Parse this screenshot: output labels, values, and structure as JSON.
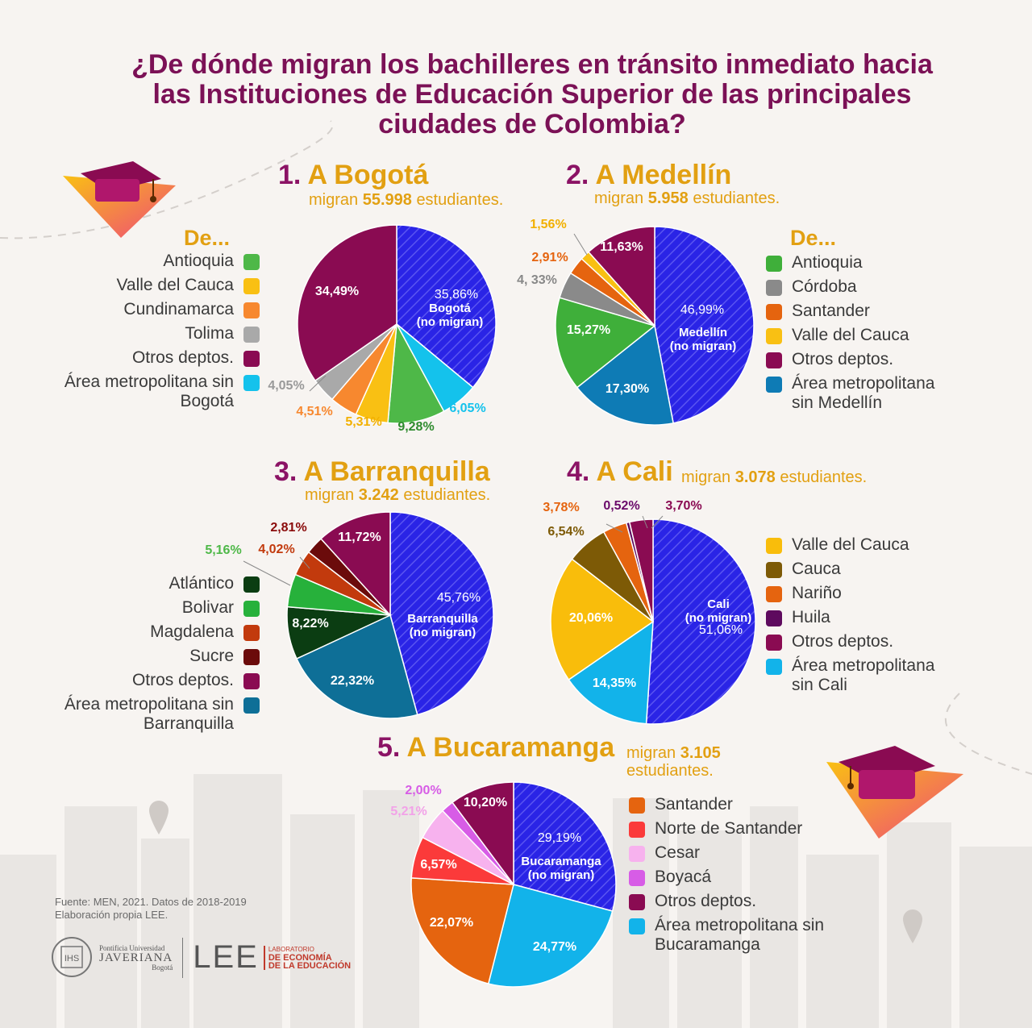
{
  "title": "¿De dónde migran los bachilleres en tránsito inmediato hacia las Instituciones de Educación Superior de las principales ciudades de Colombia?",
  "de_label": "De...",
  "source": {
    "line1": "Fuente: MEN, 2021. Datos de 2018-2019",
    "line2": "Elaboración propia LEE."
  },
  "logos": {
    "puj_small": "Pontificia Universidad",
    "puj_big": "JAVERIANA",
    "puj_city": "Bogotá",
    "lee": "LEE",
    "lee_small": "LABORATORIO",
    "lee_line1": "DE ECONOMÍA",
    "lee_line2": "DE LA EDUCACIÓN"
  },
  "colors": {
    "title": "#7b1156",
    "accent": "#e2a012",
    "background": "#f7f4f1",
    "no_migran": "#2a24e6",
    "otros": "#8a0b52"
  },
  "icons": [
    "graduation-cap-icon",
    "map-pin-icon"
  ],
  "chart_data": [
    {
      "type": "pie",
      "id": "bogota",
      "number": "1.",
      "city": "A Bogotá",
      "subtitle_pre": "migran",
      "subtitle_num": "55.998",
      "subtitle_post": "estudiantes.",
      "slices": [
        {
          "label": "Bogotá (no migran)",
          "value": 35.86,
          "text": "35,86%",
          "color": "#2a24e6",
          "hatched": true
        },
        {
          "label": "Área metropolitana sin Bogotá",
          "value": 6.05,
          "text": "6,05%",
          "color": "#14c2ec"
        },
        {
          "label": "Antioquia",
          "value": 9.28,
          "text": "9,28%",
          "color": "#4eb848"
        },
        {
          "label": "Valle del Cauca",
          "value": 5.31,
          "text": "5,31%",
          "color": "#f9c013"
        },
        {
          "label": "Cundinamarca",
          "value": 4.51,
          "text": "4,51%",
          "color": "#f7882f"
        },
        {
          "label": "Tolima",
          "value": 4.05,
          "text": "4,05%",
          "color": "#a9a9a9"
        },
        {
          "label": "Otros deptos.",
          "value": 34.49,
          "text": "34,49%",
          "color": "#8a0b52"
        }
      ],
      "legend": [
        "Antioquia",
        "Valle del Cauca",
        "Cundinamarca",
        "Tolima",
        "Otros deptos.",
        "Área metropolitana sin Bogotá"
      ],
      "center_label": [
        "Bogotá",
        "(no migran)"
      ]
    },
    {
      "type": "pie",
      "id": "medellin",
      "number": "2.",
      "city": "A Medellín",
      "subtitle_pre": "migran",
      "subtitle_num": "5.958",
      "subtitle_post": "estudiantes.",
      "slices": [
        {
          "label": "Medellín (no migran)",
          "value": 46.99,
          "text": "46,99%",
          "color": "#2a24e6",
          "hatched": true
        },
        {
          "label": "Área metropolitana sin Medellín",
          "value": 17.3,
          "text": "17,30%",
          "color": "#0e7bb5"
        },
        {
          "label": "Antioquia",
          "value": 15.27,
          "text": "15,27%",
          "color": "#3faf3a"
        },
        {
          "label": "Córdoba",
          "value": 4.33,
          "text": "4, 33%",
          "color": "#8a8a8a"
        },
        {
          "label": "Santander",
          "value": 2.91,
          "text": "2,91%",
          "color": "#e5640f"
        },
        {
          "label": "Valle del Cauca",
          "value": 1.56,
          "text": "1,56%",
          "color": "#f9c013"
        },
        {
          "label": "Otros deptos.",
          "value": 11.63,
          "text": "11,63%",
          "color": "#8a0b52"
        }
      ],
      "legend": [
        "Antioquia",
        "Córdoba",
        "Santander",
        "Valle del Cauca",
        "Otros deptos.",
        "Área metropolitana sin Medellín"
      ],
      "center_label": [
        "Medellín",
        "(no migran)"
      ]
    },
    {
      "type": "pie",
      "id": "barranquilla",
      "number": "3.",
      "city": "A Barranquilla",
      "subtitle_pre": "migran",
      "subtitle_num": "3.242",
      "subtitle_post": "estudiantes.",
      "slices": [
        {
          "label": "Barranquilla (no migran)",
          "value": 45.76,
          "text": "45,76%",
          "color": "#2a24e6",
          "hatched": true
        },
        {
          "label": "Área metropolitana sin Barranquilla",
          "value": 22.32,
          "text": "22,32%",
          "color": "#0e6f97"
        },
        {
          "label": "Atlántico",
          "value": 8.22,
          "text": "8,22%",
          "color": "#0b3d12"
        },
        {
          "label": "Bolivar",
          "value": 5.16,
          "text": "5,16%",
          "color": "#27b13b"
        },
        {
          "label": "Magdalena",
          "value": 4.02,
          "text": "4,02%",
          "color": "#c23a0d"
        },
        {
          "label": "Sucre",
          "value": 2.81,
          "text": "2,81%",
          "color": "#6b0b0b"
        },
        {
          "label": "Otros deptos.",
          "value": 11.72,
          "text": "11,72%",
          "color": "#8a0b52"
        }
      ],
      "legend": [
        "Atlántico",
        "Bolivar",
        "Magdalena",
        "Sucre",
        "Otros deptos.",
        "Área metropolitana sin Barranquilla"
      ],
      "center_label": [
        "Barranquilla",
        "(no migran)"
      ]
    },
    {
      "type": "pie",
      "id": "cali",
      "number": "4.",
      "city": "A Cali",
      "subtitle_pre": "migran",
      "subtitle_num": "3.078",
      "subtitle_post": "estudiantes.",
      "slices": [
        {
          "label": "Cali (no migran)",
          "value": 51.06,
          "text": "51,06%",
          "color": "#2a24e6",
          "hatched": true
        },
        {
          "label": "Área metropolitana sin Cali",
          "value": 14.35,
          "text": "14,35%",
          "color": "#12b3ea"
        },
        {
          "label": "Valle del Cauca",
          "value": 20.06,
          "text": "20,06%",
          "color": "#f9bd0b"
        },
        {
          "label": "Cauca",
          "value": 6.54,
          "text": "6,54%",
          "color": "#7d5a06"
        },
        {
          "label": "Nariño",
          "value": 3.78,
          "text": "3,78%",
          "color": "#e5640f"
        },
        {
          "label": "Huila",
          "value": 0.52,
          "text": "0,52%",
          "color": "#5e0a5e"
        },
        {
          "label": "Otros deptos.",
          "value": 3.7,
          "text": "3,70%",
          "color": "#8a0b52"
        }
      ],
      "legend": [
        "Valle del Cauca",
        "Cauca",
        "Nariño",
        "Huila",
        "Otros deptos.",
        "Área metropolitana sin Cali"
      ],
      "center_label": [
        "Cali",
        "(no migran)"
      ]
    },
    {
      "type": "pie",
      "id": "bucaramanga",
      "number": "5.",
      "city": "A Bucaramanga",
      "subtitle_pre": "migran",
      "subtitle_num": "3.105",
      "subtitle_post": "estudiantes.",
      "slices": [
        {
          "label": "Bucaramanga (no migran)",
          "value": 29.19,
          "text": "29,19%",
          "color": "#2a24e6",
          "hatched": true
        },
        {
          "label": "Área metropolitana sin Bucaramanga",
          "value": 24.77,
          "text": "24,77%",
          "color": "#12b3ea"
        },
        {
          "label": "Santander",
          "value": 22.07,
          "text": "22,07%",
          "color": "#e5640f"
        },
        {
          "label": "Norte de Santander",
          "value": 6.57,
          "text": "6,57%",
          "color": "#fb3a3a"
        },
        {
          "label": "Cesar",
          "value": 5.21,
          "text": "5,21%",
          "color": "#f7b2ee"
        },
        {
          "label": "Boyacá",
          "value": 2.0,
          "text": "2,00%",
          "color": "#d75ce6"
        },
        {
          "label": "Otros deptos.",
          "value": 10.2,
          "text": "10,20%",
          "color": "#8a0b52"
        }
      ],
      "legend": [
        "Santander",
        "Norte de Santander",
        "Cesar",
        "Boyacá",
        "Otros deptos.",
        "Área metropolitana sin Bucaramanga"
      ],
      "center_label": [
        "Bucaramanga",
        "(no migran)"
      ]
    }
  ]
}
